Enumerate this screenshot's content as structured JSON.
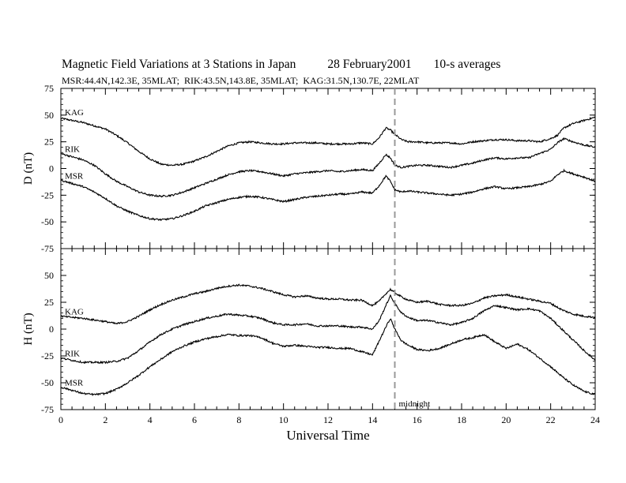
{
  "title": {
    "main": "Magnetic Field Variations at 3 Stations in Japan",
    "date": "28 February2001",
    "averaging": "10-s averages"
  },
  "stations_line": "MSR:44.4N,142.3E, 35MLAT;  RIK:43.5N,143.8E, 35MLAT;  KAG:31.5N,130.7E, 22MLAT",
  "chart_data": [
    {
      "type": "line",
      "panel": "top",
      "ylabel": "D (nT)",
      "ylim": [
        -75,
        75
      ],
      "yticks": [
        75,
        50,
        25,
        0,
        -25,
        -50,
        -75
      ],
      "xlim": [
        0,
        24
      ],
      "grid": false,
      "series": [
        {
          "name": "KAG",
          "x": [
            0,
            1,
            2,
            2.5,
            3,
            3.5,
            4,
            4.5,
            5,
            5.5,
            6,
            6.5,
            7,
            7.5,
            8,
            8.5,
            9,
            9.5,
            10,
            10.5,
            11,
            11.5,
            12,
            12.5,
            13,
            13.5,
            14,
            14.3,
            14.6,
            14.8,
            15,
            15.3,
            15.6,
            16,
            16.5,
            17,
            17.5,
            18,
            18.5,
            19,
            19.5,
            20,
            20.5,
            21,
            21.5,
            22,
            22.3,
            22.6,
            23,
            23.5,
            24
          ],
          "values": [
            47,
            43,
            37,
            31,
            24,
            16,
            9,
            4,
            3,
            4,
            7,
            11,
            16,
            21,
            24,
            25,
            24,
            23,
            23,
            24,
            24,
            24,
            23,
            23,
            23,
            24,
            23,
            29,
            38,
            36,
            32,
            27,
            25,
            25,
            24,
            24,
            24,
            23,
            25,
            26,
            27,
            27,
            26,
            26,
            25,
            28,
            31,
            38,
            42,
            45,
            48
          ]
        },
        {
          "name": "RIK",
          "x": [
            0,
            1,
            1.5,
            2,
            2.5,
            3,
            3.5,
            4,
            4.5,
            5,
            5.5,
            6,
            6.5,
            7,
            7.5,
            8,
            8.5,
            9,
            9.5,
            10,
            10.5,
            11,
            11.5,
            12,
            12.5,
            13,
            13.5,
            14,
            14.3,
            14.6,
            14.8,
            15,
            15.3,
            15.6,
            16,
            16.5,
            17,
            17.5,
            18,
            18.5,
            19,
            19.5,
            20,
            20.5,
            21,
            21.5,
            22,
            22.3,
            22.6,
            23,
            23.5,
            24
          ],
          "values": [
            14,
            8,
            3,
            -5,
            -12,
            -17,
            -22,
            -25,
            -26,
            -25,
            -22,
            -18,
            -14,
            -10,
            -6,
            -3,
            -2,
            -3,
            -5,
            -7,
            -5,
            -4,
            -3,
            -2,
            -3,
            -2,
            -1,
            -2,
            5,
            13,
            10,
            3,
            1,
            2,
            3,
            3,
            2,
            1,
            3,
            5,
            8,
            10,
            9,
            10,
            10,
            14,
            18,
            24,
            28,
            25,
            22,
            20
          ]
        },
        {
          "name": "MSR",
          "x": [
            0,
            1,
            1.5,
            2,
            2.5,
            3,
            3.5,
            4,
            4.5,
            5,
            5.5,
            6,
            6.5,
            7,
            7.5,
            8,
            8.5,
            9,
            9.5,
            10,
            10.5,
            11,
            11.5,
            12,
            12.5,
            13,
            13.5,
            14,
            14.3,
            14.6,
            14.8,
            15,
            15.3,
            15.6,
            16,
            16.5,
            17,
            17.5,
            18,
            18.5,
            19,
            19.5,
            20,
            20.5,
            21,
            21.5,
            22,
            22.3,
            22.6,
            23,
            23.5,
            24
          ],
          "values": [
            -11,
            -17,
            -22,
            -28,
            -35,
            -40,
            -44,
            -47,
            -48,
            -47,
            -44,
            -40,
            -35,
            -32,
            -29,
            -27,
            -26,
            -27,
            -29,
            -31,
            -29,
            -27,
            -26,
            -25,
            -24,
            -24,
            -22,
            -23,
            -16,
            -7,
            -12,
            -20,
            -22,
            -21,
            -22,
            -23,
            -24,
            -25,
            -24,
            -22,
            -19,
            -17,
            -19,
            -18,
            -17,
            -15,
            -12,
            -6,
            -2,
            -5,
            -8,
            -12
          ]
        }
      ]
    },
    {
      "type": "line",
      "panel": "bottom",
      "ylabel": "H (nT)",
      "xlabel": "Universal Time",
      "ylim": [
        -75,
        75
      ],
      "yticks": [
        50,
        25,
        0,
        -25,
        -50,
        -75
      ],
      "xlim": [
        0,
        24
      ],
      "xticks": [
        0,
        2,
        4,
        6,
        8,
        10,
        12,
        14,
        16,
        18,
        20,
        22,
        24
      ],
      "grid": false,
      "series": [
        {
          "name": "KAG",
          "x": [
            0,
            1,
            2,
            2.5,
            3,
            3.5,
            4,
            4.5,
            5,
            5.5,
            6,
            6.5,
            7,
            7.5,
            8,
            8.5,
            9,
            9.5,
            10,
            10.5,
            11,
            11.5,
            12,
            12.5,
            13,
            13.5,
            14,
            14.3,
            14.6,
            14.8,
            15,
            15.3,
            15.6,
            16,
            16.5,
            17,
            17.5,
            18,
            18.5,
            19,
            19.5,
            20,
            20.5,
            21,
            21.5,
            22,
            22.5,
            23,
            23.5,
            24
          ],
          "values": [
            12,
            10,
            7,
            5,
            7,
            12,
            18,
            23,
            27,
            30,
            33,
            35,
            38,
            40,
            41,
            40,
            38,
            35,
            32,
            30,
            31,
            29,
            28,
            28,
            27,
            27,
            22,
            26,
            33,
            37,
            34,
            30,
            27,
            25,
            26,
            23,
            22,
            22,
            24,
            29,
            31,
            32,
            30,
            28,
            26,
            24,
            18,
            14,
            12,
            11
          ]
        },
        {
          "name": "RIK",
          "x": [
            0,
            1,
            2,
            2.5,
            3,
            3.5,
            4,
            4.5,
            5,
            5.5,
            6,
            6.5,
            7,
            7.5,
            8,
            8.5,
            9,
            9.5,
            10,
            10.5,
            11,
            11.5,
            12,
            12.5,
            13,
            13.5,
            14,
            14.3,
            14.6,
            14.8,
            15,
            15.3,
            15.6,
            16,
            16.5,
            17,
            17.5,
            18,
            18.5,
            19,
            19.5,
            20,
            20.5,
            21,
            21.5,
            22,
            22.5,
            23,
            23.5,
            24
          ],
          "values": [
            -27,
            -31,
            -31,
            -30,
            -27,
            -20,
            -12,
            -5,
            0,
            4,
            7,
            10,
            12,
            14,
            13,
            12,
            10,
            6,
            4,
            4,
            5,
            3,
            3,
            3,
            2,
            2,
            0,
            8,
            22,
            31,
            24,
            15,
            11,
            8,
            8,
            6,
            4,
            6,
            10,
            17,
            22,
            20,
            18,
            19,
            17,
            10,
            0,
            -10,
            -20,
            -29
          ]
        },
        {
          "name": "MSR",
          "x": [
            0,
            1,
            1.5,
            2,
            2.5,
            3,
            3.5,
            4,
            4.5,
            5,
            5.5,
            6,
            6.5,
            7,
            7.5,
            8,
            8.5,
            9,
            9.5,
            10,
            10.5,
            11,
            11.5,
            12,
            12.5,
            13,
            13.5,
            14,
            14.3,
            14.6,
            14.8,
            15,
            15.3,
            15.6,
            16,
            16.5,
            17,
            17.5,
            18,
            18.5,
            19,
            19.5,
            20,
            20.5,
            21,
            21.5,
            22,
            22.5,
            23,
            23.5,
            24
          ],
          "values": [
            -54,
            -60,
            -61,
            -60,
            -56,
            -50,
            -43,
            -35,
            -28,
            -21,
            -16,
            -12,
            -9,
            -7,
            -5,
            -6,
            -6,
            -8,
            -13,
            -16,
            -15,
            -16,
            -17,
            -17,
            -18,
            -18,
            -21,
            -24,
            -11,
            2,
            10,
            0,
            -11,
            -15,
            -19,
            -20,
            -18,
            -14,
            -10,
            -8,
            -5,
            -12,
            -18,
            -14,
            -19,
            -27,
            -35,
            -44,
            -52,
            -58,
            -61
          ]
        }
      ]
    }
  ],
  "annotation": {
    "label": "midnight",
    "x": 15
  }
}
